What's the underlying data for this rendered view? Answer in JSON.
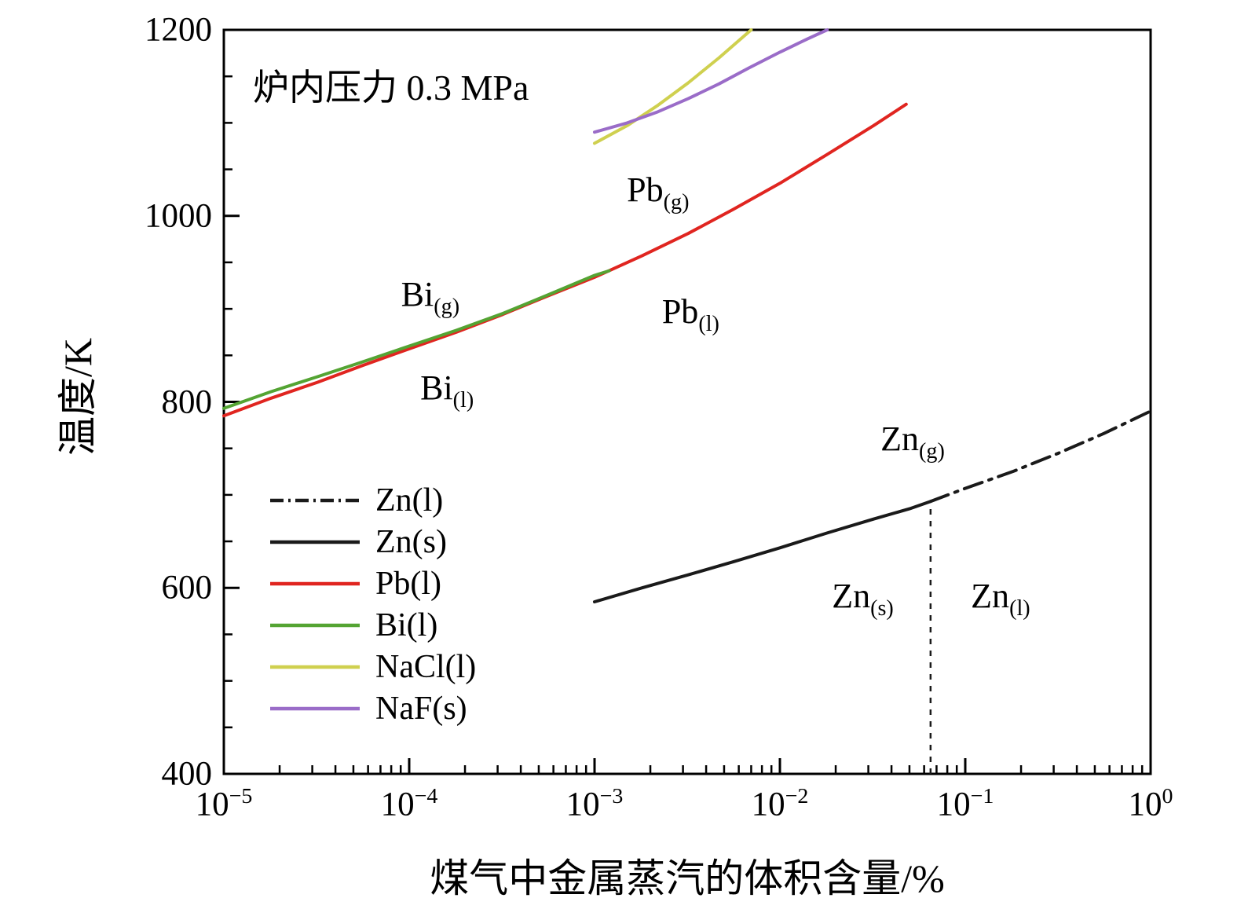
{
  "chart_data": {
    "type": "line",
    "title_annotation": "炉内压力 0.3 MPa",
    "xlabel": "煤气中金属蒸汽的体积含量/%",
    "ylabel": "温度/K",
    "x_scale": "log",
    "xlim": [
      1e-05,
      1
    ],
    "ylim": [
      400,
      1200
    ],
    "x_tick_exponents": [
      -5,
      -4,
      -3,
      -2,
      -1,
      0
    ],
    "y_ticks": [
      400,
      600,
      800,
      1000,
      1200
    ],
    "y_minor_step": 50,
    "frame_color": "#000000",
    "series": [
      {
        "name": "Zn(l)",
        "color": "#1a1a1a",
        "dash": "dashdot",
        "x": [
          0.065,
          0.1,
          0.18,
          0.32,
          0.56,
          1
        ],
        "y": [
          693,
          707,
          725,
          745,
          766,
          790
        ]
      },
      {
        "name": "Zn(s)",
        "color": "#1a1a1a",
        "dash": "solid",
        "x": [
          0.001,
          0.0018,
          0.0032,
          0.0056,
          0.01,
          0.018,
          0.032,
          0.05,
          0.065
        ],
        "y": [
          585,
          600,
          614,
          628,
          643,
          659,
          674,
          685,
          693
        ]
      },
      {
        "name": "Pb(l)",
        "color": "#e02520",
        "dash": "solid",
        "x": [
          1e-05,
          1.8e-05,
          3.2e-05,
          5.6e-05,
          0.0001,
          0.00018,
          0.00032,
          0.00056,
          0.001,
          0.0018,
          0.0032,
          0.0056,
          0.01,
          0.018,
          0.032,
          0.048
        ],
        "y": [
          785,
          804,
          821,
          839,
          857,
          875,
          894,
          914,
          934,
          957,
          981,
          1007,
          1035,
          1066,
          1097,
          1120
        ]
      },
      {
        "name": "Bi(l)",
        "color": "#54a433",
        "dash": "solid",
        "x": [
          1e-05,
          1.8e-05,
          3.2e-05,
          5.6e-05,
          0.0001,
          0.00018,
          0.00032,
          0.00056,
          0.001,
          0.0012
        ],
        "y": [
          793,
          811,
          827,
          843,
          860,
          877,
          895,
          915,
          936,
          941
        ]
      },
      {
        "name": "NaCl(l)",
        "color": "#cfd04f",
        "dash": "solid",
        "x": [
          0.001,
          0.0015,
          0.0022,
          0.0032,
          0.0047,
          0.007
        ],
        "y": [
          1078,
          1097,
          1119,
          1143,
          1170,
          1200
        ]
      },
      {
        "name": "NaF(s)",
        "color": "#9a6cc8",
        "dash": "solid",
        "x": [
          0.001,
          0.0015,
          0.0022,
          0.0032,
          0.0047,
          0.0068,
          0.01,
          0.014,
          0.018
        ],
        "y": [
          1090,
          1100,
          1112,
          1126,
          1142,
          1159,
          1176,
          1190,
          1200
        ]
      }
    ],
    "reference_line": {
      "x": 0.065,
      "t_bottom": 400,
      "t_top": 693,
      "color": "#1a1a1a",
      "style": "dashed"
    },
    "annotations": [
      {
        "main": "Pb",
        "sub": "(g)",
        "x": 0.0022,
        "t": 1025
      },
      {
        "main": "Pb",
        "sub": "(l)",
        "x": 0.0033,
        "t": 894
      },
      {
        "main": "Bi",
        "sub": "(g)",
        "x": 0.00013,
        "t": 913
      },
      {
        "main": "Bi",
        "sub": "(l)",
        "x": 0.00016,
        "t": 812
      },
      {
        "main": "Zn",
        "sub": "(g)",
        "x": 0.052,
        "t": 757
      },
      {
        "main": "Zn",
        "sub": "(s)",
        "x": 0.028,
        "t": 588
      },
      {
        "main": "Zn",
        "sub": "(l)",
        "x": 0.155,
        "t": 588
      }
    ],
    "legend": [
      {
        "label": "Zn(l)",
        "series": 0
      },
      {
        "label": "Zn(s)",
        "series": 1
      },
      {
        "label": "Pb(l)",
        "series": 2
      },
      {
        "label": "Bi(l)",
        "series": 3
      },
      {
        "label": "NaCl(l)",
        "series": 4
      },
      {
        "label": "NaF(s)",
        "series": 5
      }
    ]
  }
}
